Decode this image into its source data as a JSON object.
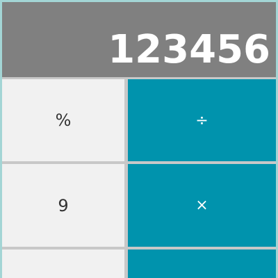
{
  "display": {
    "value": "123456"
  },
  "keys": [
    {
      "id": "percent",
      "label": "%"
    },
    {
      "id": "divide",
      "label": "÷"
    },
    {
      "id": "nine",
      "label": "9"
    },
    {
      "id": "multiply",
      "label": "×"
    },
    {
      "id": "row3-left",
      "label": ""
    },
    {
      "id": "row3-right",
      "label": ""
    }
  ],
  "colors": {
    "outer_background": "#a3d5d5",
    "display_background": "#808080",
    "display_text": "#ffffff",
    "light_key": "#f1f1f1",
    "accent_key": "#0093ad",
    "gap": "#c8c8c8"
  }
}
